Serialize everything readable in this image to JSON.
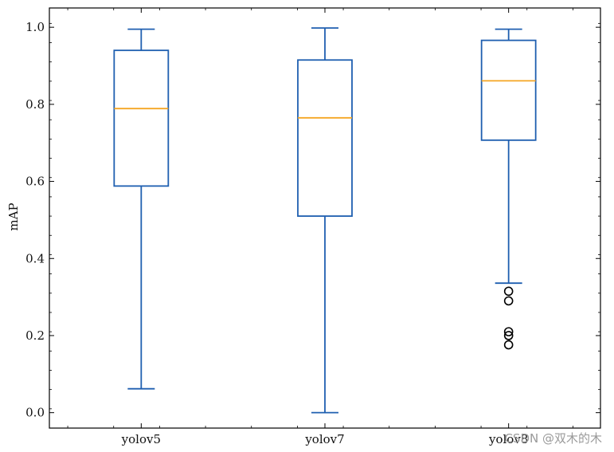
{
  "chart_data": {
    "type": "box",
    "title": "",
    "xlabel": "",
    "ylabel": "mAP",
    "ylim": [
      -0.04,
      1.05
    ],
    "yticks": [
      0.0,
      0.2,
      0.4,
      0.6,
      0.8,
      1.0
    ],
    "ytick_labels": [
      "0.0",
      "0.2",
      "0.4",
      "0.6",
      "0.8",
      "1.0"
    ],
    "categories": [
      "yolov5",
      "yolov7",
      "yolov8"
    ],
    "boxes": [
      {
        "category": "yolov5",
        "whisker_low": 0.062,
        "q1": 0.588,
        "median": 0.789,
        "q3": 0.94,
        "whisker_high": 0.995,
        "outliers": []
      },
      {
        "category": "yolov7",
        "whisker_low": 0.0,
        "q1": 0.51,
        "median": 0.765,
        "q3": 0.915,
        "whisker_high": 0.998,
        "outliers": []
      },
      {
        "category": "yolov8",
        "whisker_low": 0.336,
        "q1": 0.707,
        "median": 0.861,
        "q3": 0.966,
        "whisker_high": 0.995,
        "outliers": [
          0.315,
          0.29,
          0.21,
          0.2,
          0.176
        ]
      }
    ],
    "colors": {
      "box": "#1f5fb0",
      "median": "#f5a623",
      "outlier": "#000000",
      "frame": "#000000"
    },
    "grid": false,
    "legend": "none"
  },
  "watermark": "CSDN @双木的木"
}
